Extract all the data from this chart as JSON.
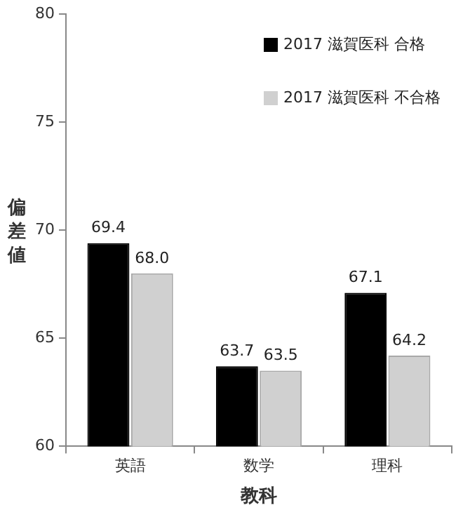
{
  "chart_data": {
    "type": "bar",
    "xlabel": "教科",
    "ylabel": "偏差値",
    "categories": [
      "英語",
      "数学",
      "理科"
    ],
    "series": [
      {
        "name": "2017 滋賀医科 合格",
        "color": "#000000",
        "values": [
          69.4,
          63.7,
          67.1
        ],
        "value_labels": [
          "69.4",
          "63.7",
          "67.1"
        ]
      },
      {
        "name": "2017 滋賀医科 不合格",
        "color": "#d0d0d0",
        "values": [
          68.0,
          63.5,
          64.2
        ],
        "value_labels": [
          "68.0",
          "63.5",
          "64.2"
        ]
      }
    ],
    "ylim": [
      60,
      80
    ],
    "yticks": [
      60,
      65,
      70,
      75,
      80
    ],
    "grid": false,
    "legend": "top right"
  }
}
